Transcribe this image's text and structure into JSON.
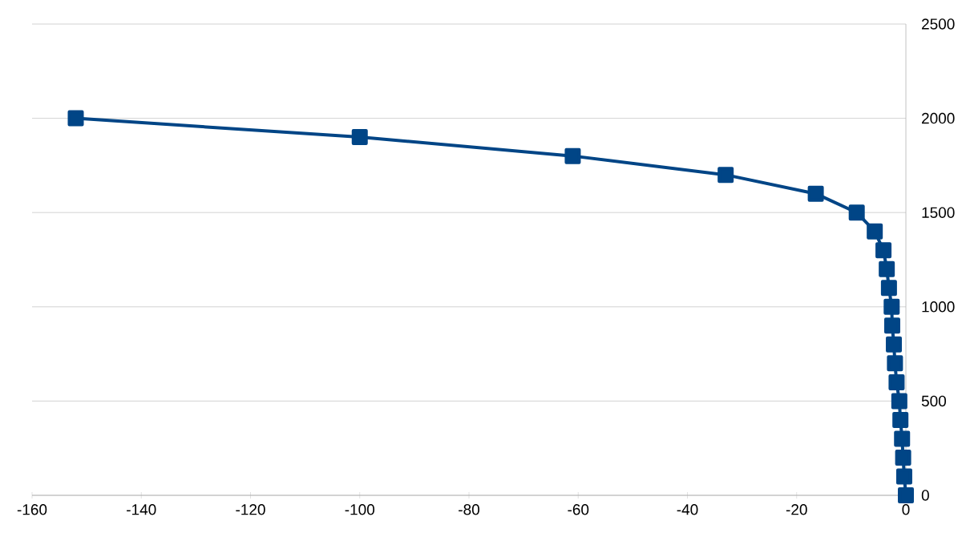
{
  "chart_data": {
    "type": "line",
    "x": [
      -152,
      -100,
      -61,
      -33,
      -16.5,
      -9,
      -5.7,
      -4.1,
      -3.5,
      -3.1,
      -2.6,
      -2.5,
      -2.2,
      -2,
      -1.7,
      -1.2,
      -1,
      -0.7,
      -0.5,
      -0.3,
      0
    ],
    "values": [
      2000,
      1900,
      1800,
      1700,
      1600,
      1500,
      1400,
      1300,
      1200,
      1100,
      1000,
      900,
      800,
      700,
      600,
      500,
      400,
      300,
      200,
      100,
      0
    ],
    "color": "#004586",
    "marker": "square",
    "line_style": "solid",
    "xlim": [
      -160,
      0
    ],
    "xticks": [
      -160,
      -140,
      -120,
      -100,
      -80,
      -60,
      -40,
      -20,
      0
    ],
    "ylim": [
      0,
      2500
    ],
    "yticks": [
      0,
      500,
      1000,
      1500,
      2000,
      2500
    ],
    "grid": "y"
  }
}
